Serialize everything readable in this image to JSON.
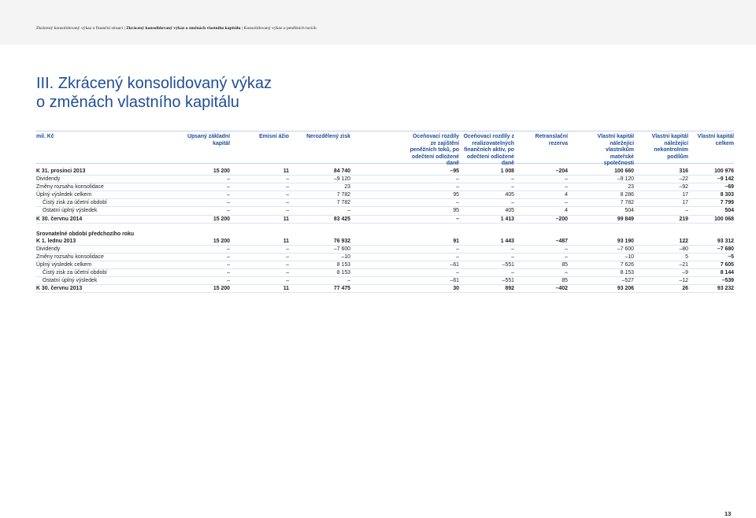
{
  "breadcrumb": {
    "part1": "Zkrácený konsolidovaný výkaz o finanční situaci |",
    "part2": "Zkrácený konsolidovaný výkaz o změnách vlastního kapitálu",
    "part3": "| Konsolidovaný výkaz o peněžních tocích"
  },
  "title": {
    "line1": "III. Zkrácený konsolidovaný výkaz",
    "line2": "o změnách vlastního kapitálu"
  },
  "table": {
    "headers": [
      "mil. Kč",
      "Upsaný základní kapitál",
      "Emisní ážio",
      "Nerozdělený zisk",
      "Oceňovací rozdíly ze zajištění peněžních toků, po odečtení odložené daně",
      "Oceňovací rozdíly z realizovatelných finančních aktiv, po odečtení odložené daně",
      "Retranslační rezerva",
      "Vlastní kapitál náležející vlastníkům mateřské společnosti",
      "Vlastní kapitál náležející nekontrolním podílům",
      "Vlastní kapitál celkem"
    ],
    "rows": [
      {
        "label": "K 31. prosinci 2013",
        "values": [
          "15 200",
          "11",
          "84 740",
          "–95",
          "1 008",
          "–204",
          "100 660",
          "316",
          "100 976"
        ]
      },
      {
        "label": "Dividendy",
        "values": [
          "–",
          "–",
          "–9 120",
          "–",
          "–",
          "–",
          "–9 120",
          "–22",
          "–9 142"
        ]
      },
      {
        "label": "Změny rozsahu konsolidace",
        "values": [
          "–",
          "–",
          "23",
          "–",
          "–",
          "–",
          "23",
          "–92",
          "–69"
        ]
      },
      {
        "label": "Úplný výsledek celkem",
        "values": [
          "–",
          "–",
          "7 782",
          "95",
          "405",
          "4",
          "8 286",
          "17",
          "8 303"
        ]
      },
      {
        "label": "Čistý zisk za účetní období",
        "values": [
          "–",
          "–",
          "7 782",
          "–",
          "–",
          "–",
          "7 782",
          "17",
          "7 799"
        ]
      },
      {
        "label": "Ostatní úplný výsledek",
        "values": [
          "–",
          "–",
          "–",
          "95",
          "405",
          "4",
          "504",
          "–",
          "504"
        ]
      },
      {
        "label": "K 30. červnu 2014",
        "values": [
          "15 200",
          "11",
          "83 425",
          "–",
          "1 413",
          "–200",
          "99 849",
          "219",
          "100 068"
        ]
      },
      {
        "label": "Srovnatelné období předchozího roku"
      },
      {
        "label": "K 1. lednu 2013",
        "values": [
          "15 200",
          "11",
          "76 932",
          "91",
          "1 443",
          "–487",
          "93 190",
          "122",
          "93 312"
        ]
      },
      {
        "label": "Dividendy",
        "values": [
          "–",
          "–",
          "–7 600",
          "–",
          "–",
          "–",
          "–7 600",
          "–80",
          "–7 680"
        ]
      },
      {
        "label": "Změny rozsahu konsolidace",
        "values": [
          "–",
          "–",
          "–10",
          "–",
          "–",
          "–",
          "–10",
          "5",
          "–5"
        ]
      },
      {
        "label": "Úplný výsledek celkem",
        "values": [
          "–",
          "–",
          "8 153",
          "–61",
          "–551",
          "85",
          "7 626",
          "–21",
          "7 605"
        ]
      },
      {
        "label": "Čistý zisk za účetní období",
        "values": [
          "–",
          "–",
          "8 153",
          "–",
          "–",
          "–",
          "8 153",
          "–9",
          "8 144"
        ]
      },
      {
        "label": "Ostatní úplný výsledek",
        "values": [
          "–",
          "–",
          "–",
          "–61",
          "–551",
          "85",
          "–527",
          "–12",
          "–539"
        ]
      },
      {
        "label": "K 30. červnu 2013",
        "values": [
          "15 200",
          "11",
          "77 475",
          "30",
          "892",
          "–402",
          "93 206",
          "26",
          "93 232"
        ]
      }
    ]
  },
  "page_number": "13"
}
